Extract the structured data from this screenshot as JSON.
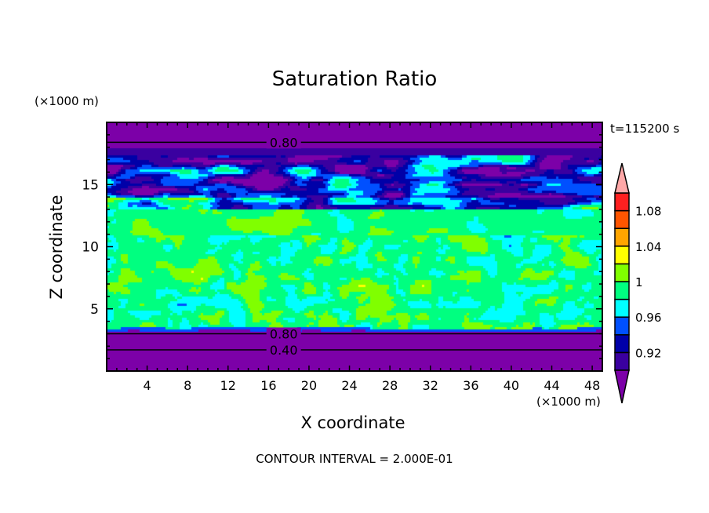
{
  "chart_data": {
    "type": "heatmap",
    "subtype": "filled-contour",
    "title": "Saturation Ratio",
    "xlabel": "X coordinate",
    "ylabel": "Z coordinate",
    "x_unit_label": "(×1000 m)",
    "y_unit_label": "(×1000 m)",
    "time_label": "t=115200 s",
    "footer": "CONTOUR INTERVAL = 2.000E-01",
    "xlim": [
      0,
      49
    ],
    "ylim": [
      0,
      20
    ],
    "xticks": [
      4,
      8,
      12,
      16,
      20,
      24,
      28,
      32,
      36,
      40,
      44,
      48
    ],
    "yticks": [
      5,
      10,
      15
    ],
    "contour_labels": [
      {
        "text": "0.80",
        "x": 17.5,
        "z": 18.4
      },
      {
        "text": "0.80",
        "x": 17.5,
        "z": 3.0
      },
      {
        "text": "0.40",
        "x": 17.5,
        "z": 1.7
      }
    ],
    "colorbar": {
      "levels": [
        0.9,
        0.92,
        0.94,
        0.96,
        0.98,
        1.0,
        1.02,
        1.04,
        1.06,
        1.08,
        1.1
      ],
      "tick_labels": [
        {
          "value": 0.92,
          "text": "0.92"
        },
        {
          "value": 0.96,
          "text": "0.96"
        },
        {
          "value": 1.0,
          "text": "1"
        },
        {
          "value": 1.04,
          "text": "1.04"
        },
        {
          "value": 1.08,
          "text": "1.08"
        }
      ],
      "under_color": "#7c00a8",
      "over_color": "#ffa8a8",
      "colors": [
        "#3a00a0",
        "#0000a8",
        "#0050ff",
        "#00ffff",
        "#00ff80",
        "#80ff00",
        "#ffff00",
        "#ffa500",
        "#ff5500",
        "#ff2020"
      ]
    },
    "vertical_profile": [
      {
        "z_range": [
          0,
          3.2
        ],
        "value": "< 0.80 (dry, purple)"
      },
      {
        "z_range": [
          3.3,
          11
        ],
        "value": "≈ 0.98–1.02 (near saturation)"
      },
      {
        "z_range": [
          11,
          13
        ],
        "value": "≈ 0.98–1.00"
      },
      {
        "z_range": [
          13,
          17.5
        ],
        "value": "≈ 0.88–1.00 (mixed)"
      },
      {
        "z_range": [
          17.5,
          20
        ],
        "value": "< 0.90"
      }
    ]
  }
}
